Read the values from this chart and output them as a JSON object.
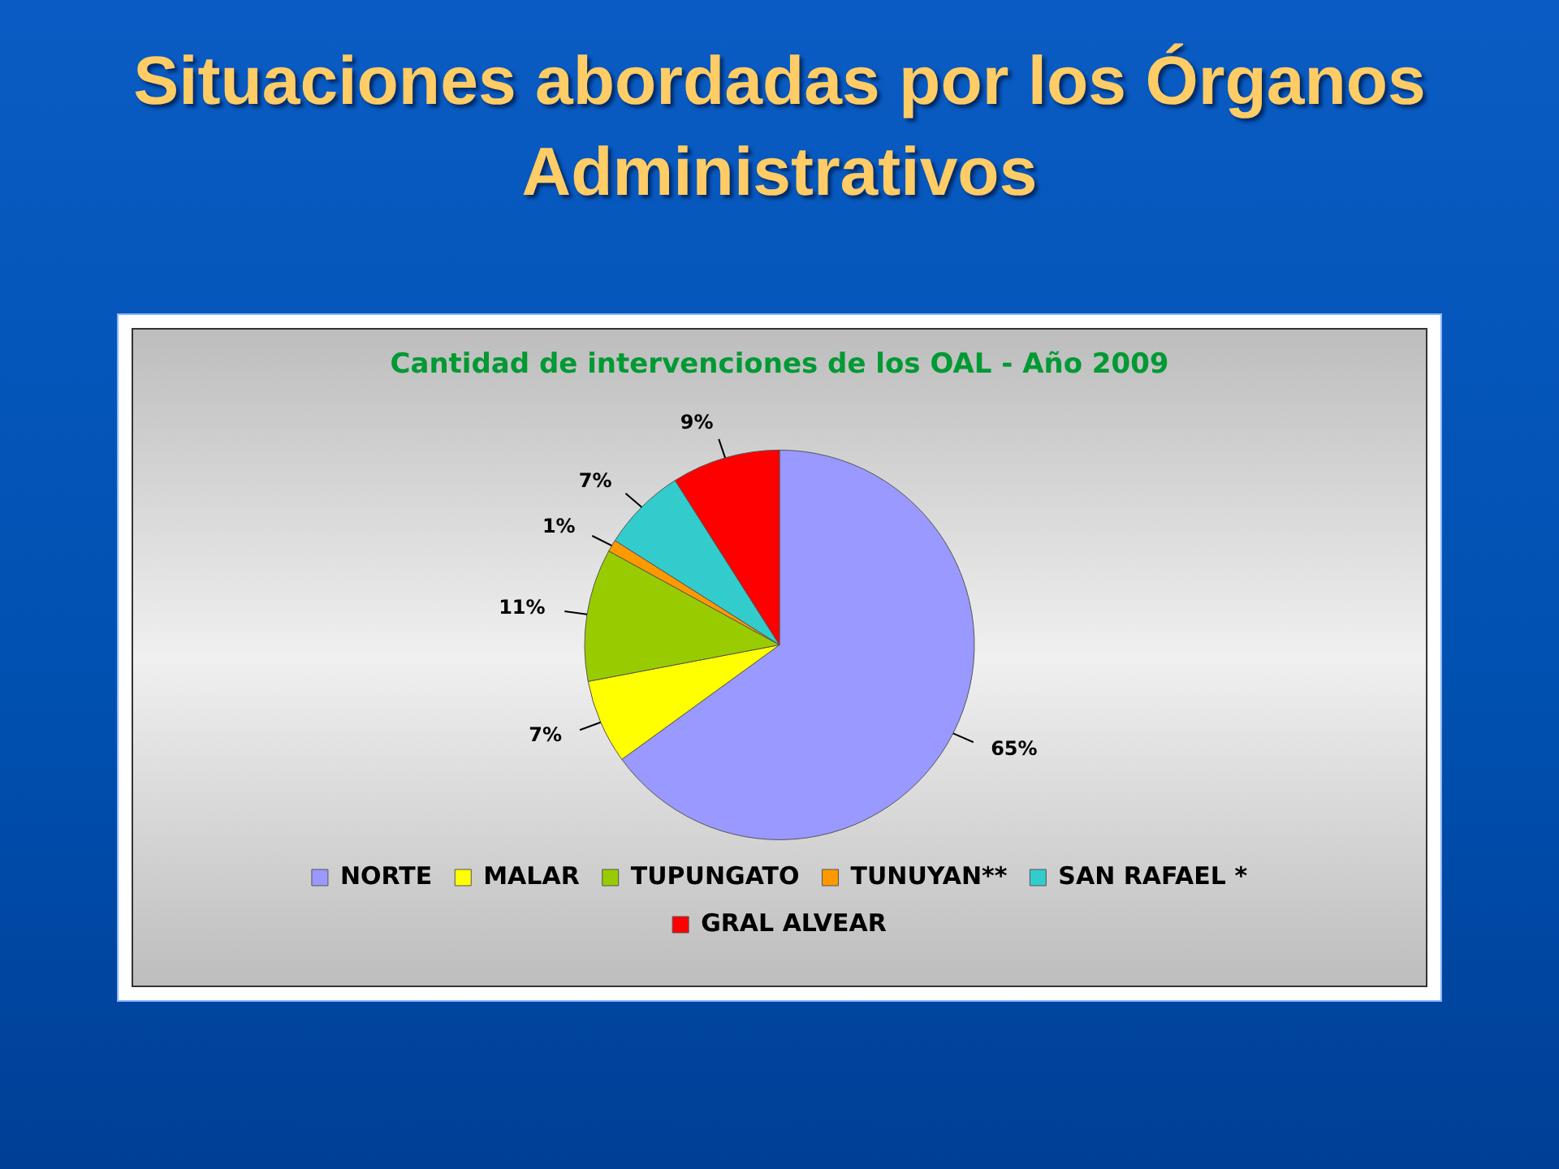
{
  "chart_data": {
    "type": "pie",
    "title": "Situaciones abordadas por los Órganos Administrativos",
    "subtitle": "Cantidad de intervenciones de los OAL - Año 2009",
    "categories": [
      "NORTE",
      "MALAR",
      "TUPUNGATO",
      "TUNUYAN**",
      "SAN RAFAEL *",
      "GRAL ALVEAR"
    ],
    "values": [
      65,
      7,
      11,
      1,
      7,
      9
    ],
    "value_labels": [
      "65%",
      "7%",
      "11%",
      "1%",
      "7%",
      "9%"
    ],
    "colors": [
      "#9999ff",
      "#ffff00",
      "#99cc00",
      "#ff9900",
      "#33cccc",
      "#ff0000"
    ],
    "legend": "bottom"
  }
}
